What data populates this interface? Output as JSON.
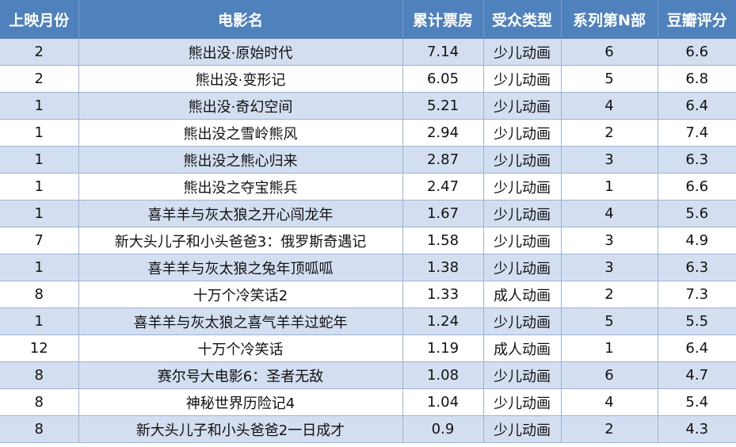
{
  "headers": [
    "上映月份",
    "电影名",
    "累计票房",
    "受众类型",
    "系列第N部",
    "豆瓣评分"
  ],
  "rows": [
    [
      "2",
      "熊出没·原始时代",
      "7.14",
      "少儿动画",
      "6",
      "6.6"
    ],
    [
      "2",
      "熊出没·变形记",
      "6.05",
      "少儿动画",
      "5",
      "6.8"
    ],
    [
      "1",
      "熊出没·奇幻空间",
      "5.21",
      "少儿动画",
      "4",
      "6.4"
    ],
    [
      "1",
      "熊出没之雪岭熊风",
      "2.94",
      "少儿动画",
      "2",
      "7.4"
    ],
    [
      "1",
      "熊出没之熊心归来",
      "2.87",
      "少儿动画",
      "3",
      "6.3"
    ],
    [
      "1",
      "熊出没之夺宝熊兵",
      "2.47",
      "少儿动画",
      "1",
      "6.6"
    ],
    [
      "1",
      "喜羊羊与灰太狼之开心闯龙年",
      "1.67",
      "少儿动画",
      "4",
      "5.6"
    ],
    [
      "7",
      "新大头儿子和小头爸爸3：俄罗斯奇遇记",
      "1.58",
      "少儿动画",
      "3",
      "4.9"
    ],
    [
      "1",
      "喜羊羊与灰太狼之兔年顶呱呱",
      "1.38",
      "少儿动画",
      "3",
      "6.3"
    ],
    [
      "8",
      "十万个冷笑话2",
      "1.33",
      "成人动画",
      "2",
      "7.3"
    ],
    [
      "1",
      "喜羊羊与灰太狼之喜气羊羊过蛇年",
      "1.24",
      "少儿动画",
      "5",
      "5.5"
    ],
    [
      "12",
      "十万个冷笑话",
      "1.19",
      "成人动画",
      "1",
      "6.4"
    ],
    [
      "8",
      "赛尔号大电影6：圣者无敌",
      "1.08",
      "少儿动画",
      "6",
      "4.7"
    ],
    [
      "8",
      "神秘世界历险记4",
      "1.04",
      "少儿动画",
      "4",
      "5.4"
    ],
    [
      "8",
      "新大头儿子和小头爸爸2一日成才",
      "0.9",
      "少儿动画",
      "2",
      "4.3"
    ]
  ]
}
